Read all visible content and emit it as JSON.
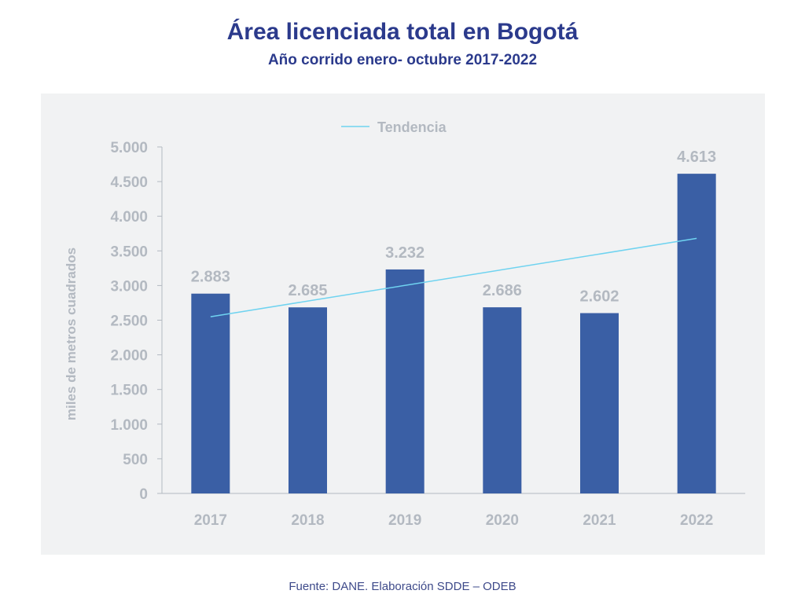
{
  "chart_data": {
    "type": "bar",
    "title": "Área licenciada total en Bogotá",
    "subtitle": "Año corrido enero- octubre 2017-2022",
    "categories": [
      "2017",
      "2018",
      "2019",
      "2020",
      "2021",
      "2022"
    ],
    "values": [
      2883,
      2685,
      3232,
      2686,
      2602,
      4613
    ],
    "data_labels": [
      "2.883",
      "2.685",
      "3.232",
      "2.686",
      "2.602",
      "4.613"
    ],
    "ylabel": "miles de metros cuadrados",
    "xlabel": "",
    "ylim": [
      0,
      5000
    ],
    "yticks": [
      0,
      500,
      1000,
      1500,
      2000,
      2500,
      3000,
      3500,
      4000,
      4500,
      5000
    ],
    "ytick_labels": [
      "0",
      "500",
      "1.000",
      "1.500",
      "2.000",
      "2.500",
      "3.000",
      "3.500",
      "4.000",
      "4.500",
      "5.000"
    ],
    "trendline": {
      "name": "Tendencia",
      "start": 2550,
      "end": 3680
    },
    "legend": {
      "position": "top-center",
      "entries": [
        "Tendencia"
      ]
    },
    "grid": false,
    "colors": {
      "bar": "#3a5fa5",
      "trend": "#6fd3f0",
      "axis": "#b3b9c1"
    }
  },
  "source": "Fuente: DANE. Elaboración SDDE – ODEB"
}
